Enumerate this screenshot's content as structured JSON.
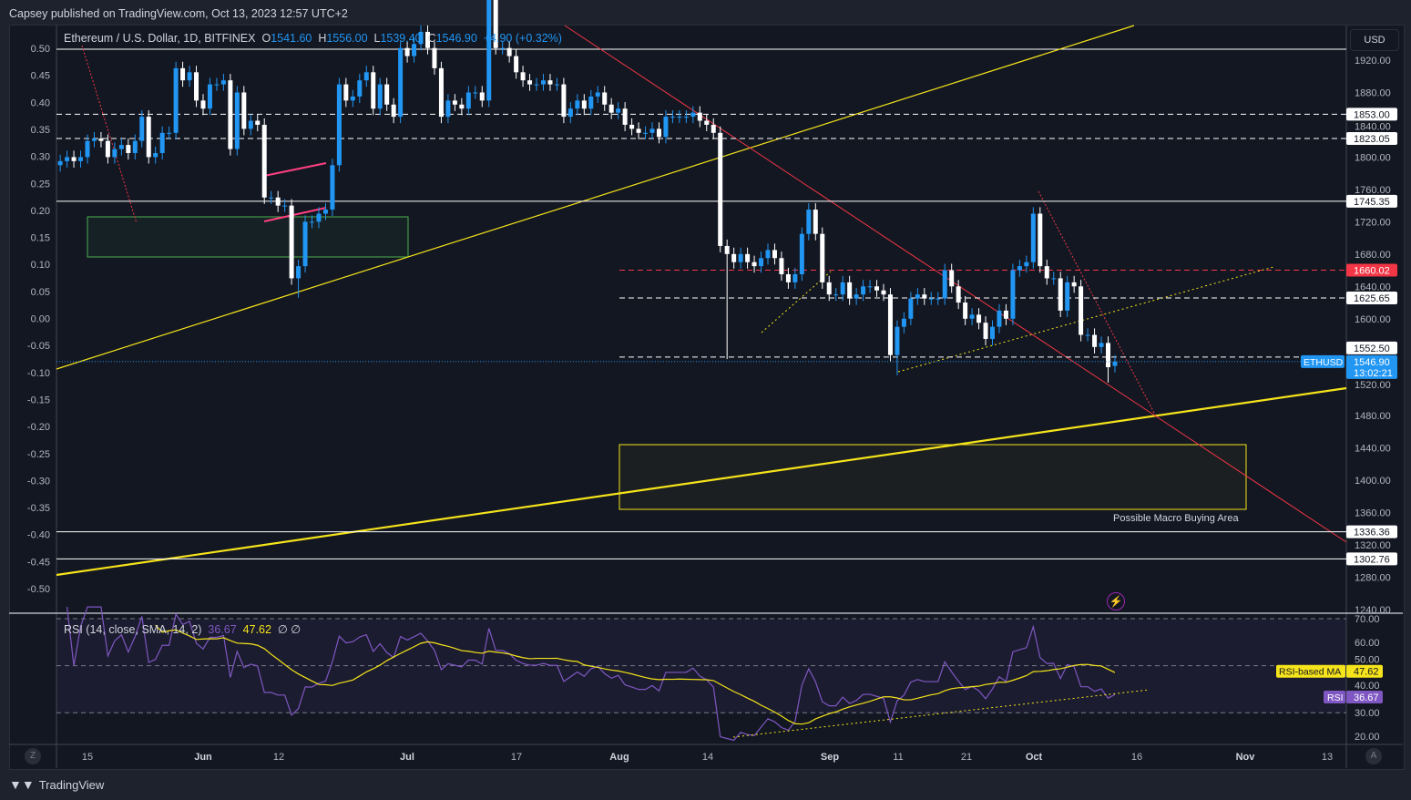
{
  "header": {
    "published": "Capsey published on TradingView.com, Oct 13, 2023 12:57 UTC+2"
  },
  "legend": {
    "symbol": "Ethereum / U.S. Dollar, 1D, BITFINEX",
    "o_label": "O",
    "o": "1541.60",
    "h_label": "H",
    "h": "1556.00",
    "l_label": "L",
    "l": "1539.40",
    "c_label": "C",
    "c": "1546.90",
    "change": "+4.90 (+0.32%)"
  },
  "currency_button": "USD",
  "rsi_legend": {
    "title": "RSI (14, close, SMA, 14, 2)",
    "rsi": "36.67",
    "ma": "47.62",
    "extra1": "∅",
    "extra2": "∅"
  },
  "annotation": "Possible Macro Buying Area",
  "footer": {
    "brand": "TradingView",
    "logo": "TV"
  },
  "axis_buttons": {
    "left": "Z",
    "right": "A"
  },
  "icons": {
    "alert": "lightning-icon"
  },
  "colors": {
    "up": "#2196f3",
    "down": "#ffffff",
    "rsi": "#7e57c2",
    "rsi_ma": "#f5e31b",
    "resistance": "#f23645",
    "trend": "#f5e31b",
    "zone": "#4caf50"
  },
  "chart_data": {
    "type": "candlestick",
    "start_date": "2023-05-11",
    "closes": [
      1795,
      1800,
      1795,
      1800,
      1820,
      1823,
      1820,
      1800,
      1810,
      1815,
      1805,
      1820,
      1850,
      1800,
      1805,
      1830,
      1830,
      1910,
      1895,
      1905,
      1870,
      1860,
      1890,
      1890,
      1895,
      1810,
      1880,
      1835,
      1845,
      1840,
      1750,
      1750,
      1740,
      1740,
      1650,
      1665,
      1720,
      1720,
      1730,
      1735,
      1790,
      1890,
      1870,
      1875,
      1895,
      1905,
      1860,
      1890,
      1865,
      1850,
      1935,
      1925,
      1940,
      1955,
      1935,
      1910,
      1850,
      1870,
      1865,
      1860,
      1880,
      1880,
      1870,
      2000,
      1935,
      1935,
      1925,
      1905,
      1895,
      1890,
      1890,
      1895,
      1890,
      1890,
      1850,
      1860,
      1870,
      1860,
      1875,
      1880,
      1865,
      1855,
      1860,
      1840,
      1835,
      1830,
      1830,
      1835,
      1825,
      1850,
      1850,
      1850,
      1850,
      1855,
      1845,
      1840,
      1830,
      1690,
      1680,
      1670,
      1680,
      1670,
      1665,
      1675,
      1685,
      1675,
      1655,
      1645,
      1655,
      1705,
      1735,
      1705,
      1645,
      1630,
      1630,
      1645,
      1625,
      1630,
      1640,
      1640,
      1635,
      1630,
      1555,
      1590,
      1600,
      1625,
      1630,
      1625,
      1625,
      1625,
      1660,
      1640,
      1620,
      1600,
      1605,
      1595,
      1575,
      1590,
      1610,
      1600,
      1660,
      1665,
      1670,
      1730,
      1665,
      1650,
      1650,
      1610,
      1645,
      1640,
      1580,
      1580,
      1565,
      1570,
      1540,
      1546.9
    ],
    "last_open": 1541.6,
    "notable_lows": {
      "2023-06-15": 1626,
      "2023-08-17": 1550,
      "2023-09-11": 1530,
      "2023-10-12": 1521
    },
    "price_axis": {
      "ticks": [
        "1920.00",
        "1880.00",
        "1840.00",
        "1800.00",
        "1760.00",
        "1720.00",
        "1680.00",
        "1640.00",
        "1600.00",
        "1520.00",
        "1480.00",
        "1440.00",
        "1400.00",
        "1360.00",
        "1320.00",
        "1280.00",
        "1240.00"
      ]
    },
    "price_levels": [
      {
        "label": "1853.00",
        "style": "dashed"
      },
      {
        "label": "1823.05",
        "style": "dashed"
      },
      {
        "label": "1745.35",
        "style": "solid"
      },
      {
        "label": "1660.02",
        "style": "dashed-red"
      },
      {
        "label": "1625.65",
        "style": "dashed"
      },
      {
        "label": "1552.50",
        "style": "dashed"
      },
      {
        "label": "1336.36",
        "style": "solid"
      },
      {
        "label": "1302.76",
        "style": "solid"
      }
    ],
    "current_price": {
      "symbol": "ETHUSD",
      "price": "1546.90",
      "countdown": "13:02:21"
    },
    "fib_axis": [
      "0.50",
      "0.45",
      "0.40",
      "0.35",
      "0.30",
      "0.25",
      "0.20",
      "0.15",
      "0.10",
      "0.05",
      "0.00",
      "-0.05",
      "-0.10",
      "-0.15",
      "-0.20",
      "-0.25",
      "-0.30",
      "-0.35",
      "-0.40",
      "-0.45",
      "-0.50"
    ],
    "date_axis": [
      "15",
      "Jun",
      "12",
      "Jul",
      "17",
      "Aug",
      "14",
      "Sep",
      "11",
      "21",
      "Oct",
      "16",
      "Nov",
      "13"
    ],
    "rsi_axis": [
      "70.00",
      "60.00",
      "50.00",
      "40.00",
      "30.00",
      "20.00"
    ],
    "rsi_tags": {
      "ma_label": "RSI-based MA",
      "ma": "47.62",
      "rsi_label": "RSI",
      "rsi": "36.67"
    }
  }
}
